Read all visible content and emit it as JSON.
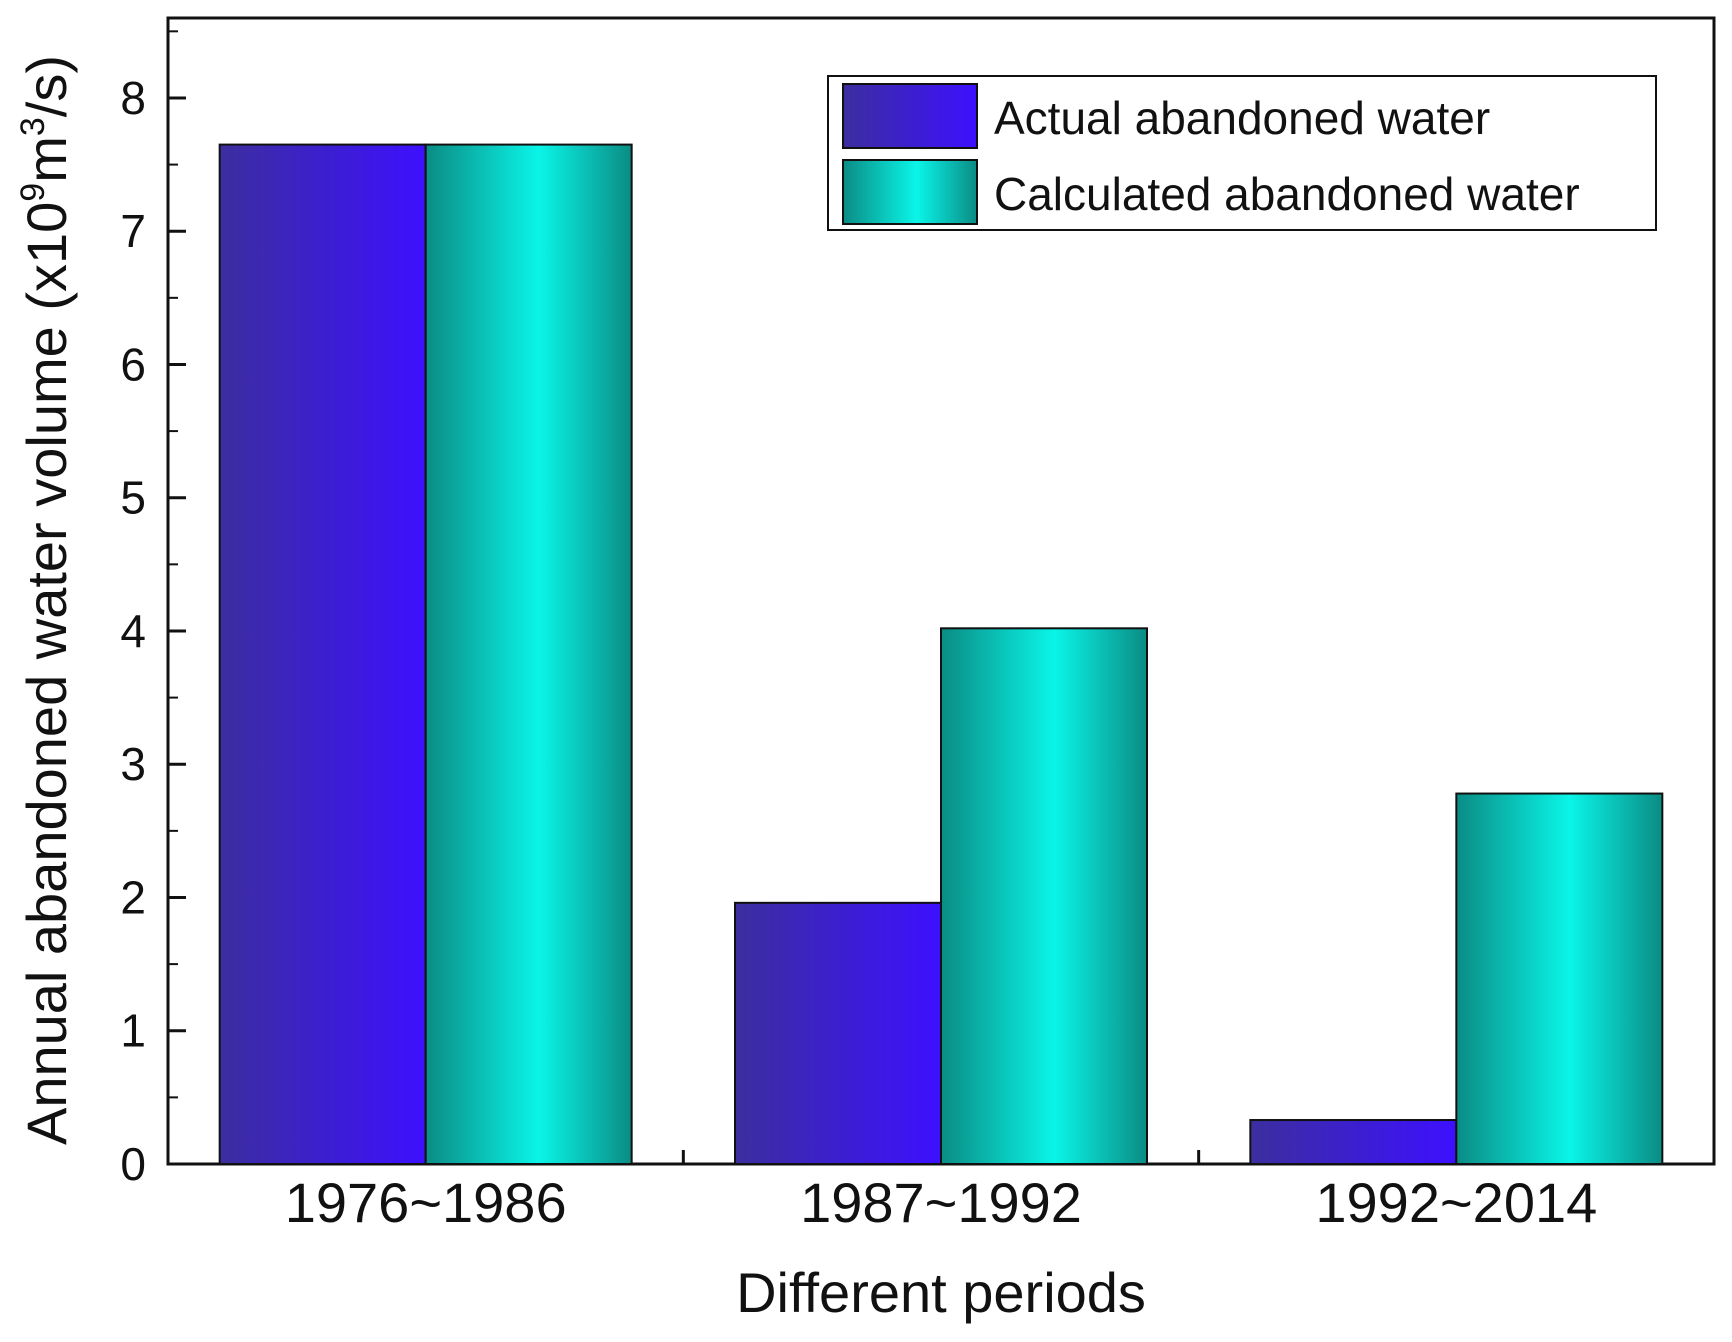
{
  "chart_data": {
    "type": "bar",
    "title": "",
    "xlabel": "Different periods",
    "ylabel_parts": [
      "Annual abandoned water volume (x10",
      "9",
      "m",
      "3",
      "/s)"
    ],
    "categories": [
      "1976~1986",
      "1987~1992",
      "1992~2014"
    ],
    "series": [
      {
        "name": "Actual abandoned water",
        "values": [
          7.65,
          1.96,
          0.33
        ],
        "color_light": "#3d10ff",
        "color_dark": "#3c2e9e"
      },
      {
        "name": "Calculated abandoned water",
        "values": [
          7.65,
          4.02,
          2.78
        ],
        "color_light": "#0af5e8",
        "color_dark": "#0a8c84"
      }
    ],
    "ylim": [
      0,
      8.6
    ],
    "yticks": [
      0,
      1,
      2,
      3,
      4,
      5,
      6,
      7,
      8
    ],
    "grid": false,
    "legend": "top-right"
  }
}
